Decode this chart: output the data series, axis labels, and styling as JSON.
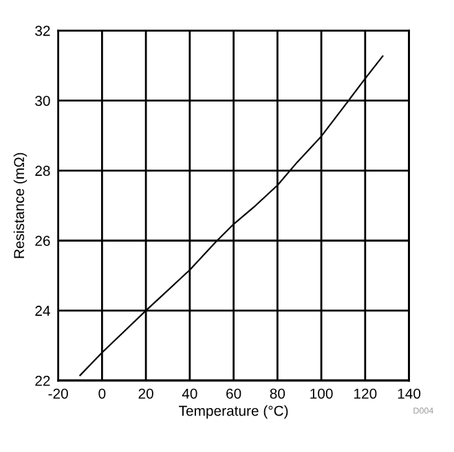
{
  "chart_data": {
    "type": "line",
    "xlabel": "Temperature (°C)",
    "ylabel": "Resistance (mΩ)",
    "x": [
      -10,
      0,
      10,
      20,
      40,
      52,
      60,
      70,
      80,
      89,
      100,
      110,
      120,
      128
    ],
    "series": [
      {
        "color": "#000000",
        "values": [
          22.15,
          22.8,
          23.4,
          24.0,
          25.16,
          25.97,
          26.47,
          27.0,
          27.58,
          28.24,
          28.98,
          29.8,
          30.63,
          31.27
        ]
      }
    ],
    "xlim": [
      -20,
      140
    ],
    "ylim": [
      22,
      32
    ],
    "xticks": [
      -20,
      0,
      20,
      40,
      60,
      80,
      100,
      120,
      140
    ],
    "yticks": [
      22,
      24,
      26,
      28,
      30,
      32
    ],
    "grid": true,
    "annotations": [
      "D004"
    ]
  }
}
